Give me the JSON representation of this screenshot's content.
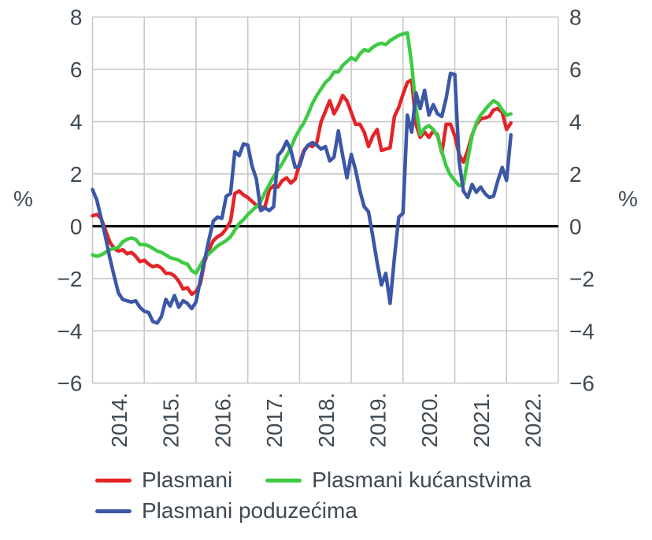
{
  "chart_data": {
    "type": "line",
    "title": "",
    "y_axis_unit": "%",
    "ylim": [
      -6,
      8
    ],
    "y_ticks": [
      8,
      6,
      4,
      2,
      0,
      -2,
      -4,
      -6
    ],
    "y_tick_labels": [
      "8",
      "6",
      "4",
      "2",
      "0",
      "−2",
      "−4",
      "−6"
    ],
    "x_tick_labels": [
      "2014.",
      "2015.",
      "2016.",
      "2017.",
      "2018.",
      "2019.",
      "2020.",
      "2021.",
      "2022."
    ],
    "x_start": "2014-01",
    "x_end": "2022-02",
    "x_total_months": 108,
    "grid": true,
    "zero_line": true,
    "legend_position": "bottom",
    "colors": {
      "grid": "#c9c9c9",
      "zero_line": "#000000",
      "text": "#3f4a54",
      "background": "#ffffff"
    },
    "series": [
      {
        "name": "Plasmani",
        "color": "#e42328",
        "values": [
          0.4,
          0.45,
          0.3,
          -0.15,
          -0.6,
          -0.85,
          -0.95,
          -0.9,
          -1.05,
          -1.0,
          -1.15,
          -1.35,
          -1.3,
          -1.45,
          -1.55,
          -1.5,
          -1.6,
          -1.8,
          -1.8,
          -1.9,
          -2.1,
          -2.4,
          -2.35,
          -2.6,
          -2.5,
          -2.2,
          -1.35,
          -0.9,
          -0.55,
          -0.4,
          -0.3,
          -0.1,
          0.2,
          1.25,
          1.35,
          1.2,
          1.1,
          0.95,
          0.8,
          0.7,
          0.75,
          1.4,
          1.55,
          1.5,
          1.75,
          1.85,
          1.65,
          1.8,
          2.4,
          2.9,
          3.1,
          3.05,
          3.2,
          4.0,
          4.4,
          4.8,
          4.3,
          4.6,
          5.0,
          4.8,
          4.35,
          3.9,
          3.9,
          3.6,
          3.05,
          3.45,
          3.7,
          2.9,
          2.95,
          3.0,
          4.2,
          4.55,
          5.05,
          5.5,
          5.6,
          3.9,
          3.4,
          3.6,
          3.4,
          3.65,
          3.5,
          2.8,
          3.9,
          3.9,
          3.45,
          2.75,
          2.45,
          2.9,
          3.5,
          3.9,
          4.1,
          4.15,
          4.2,
          4.45,
          4.5,
          4.35,
          3.7,
          3.95
        ]
      },
      {
        "name": "Plasmani kućanstvima",
        "color": "#3ecb44",
        "values": [
          -1.1,
          -1.15,
          -1.1,
          -1.0,
          -0.9,
          -0.85,
          -0.8,
          -0.6,
          -0.5,
          -0.45,
          -0.5,
          -0.7,
          -0.7,
          -0.75,
          -0.85,
          -0.95,
          -1.0,
          -1.1,
          -1.2,
          -1.25,
          -1.3,
          -1.4,
          -1.45,
          -1.7,
          -1.8,
          -1.5,
          -1.2,
          -1.05,
          -0.9,
          -0.75,
          -0.65,
          -0.55,
          -0.4,
          -0.15,
          0.1,
          0.25,
          0.45,
          0.6,
          0.75,
          0.95,
          1.3,
          1.6,
          1.9,
          2.15,
          2.4,
          2.7,
          3.0,
          3.4,
          3.7,
          3.95,
          4.3,
          4.7,
          5.0,
          5.25,
          5.5,
          5.65,
          5.9,
          5.9,
          6.15,
          6.3,
          6.45,
          6.35,
          6.6,
          6.75,
          6.7,
          6.85,
          6.95,
          7.0,
          6.95,
          7.1,
          7.2,
          7.3,
          7.35,
          7.4,
          6.2,
          4.5,
          3.5,
          3.75,
          3.85,
          3.7,
          3.45,
          2.85,
          2.3,
          1.95,
          1.75,
          1.55,
          1.6,
          2.55,
          3.45,
          3.95,
          4.25,
          4.45,
          4.65,
          4.8,
          4.7,
          4.45,
          4.25,
          4.3
        ]
      },
      {
        "name": "Plasmani poduzećima",
        "color": "#3b57a6",
        "values": [
          1.4,
          1.0,
          0.3,
          -0.4,
          -1.2,
          -1.9,
          -2.55,
          -2.8,
          -2.85,
          -2.9,
          -2.85,
          -3.1,
          -3.25,
          -3.3,
          -3.65,
          -3.7,
          -3.45,
          -2.8,
          -3.05,
          -2.65,
          -3.1,
          -2.85,
          -2.95,
          -3.15,
          -2.9,
          -2.05,
          -1.3,
          -0.5,
          0.2,
          0.35,
          0.3,
          1.15,
          1.25,
          2.85,
          2.7,
          3.15,
          3.1,
          2.3,
          1.8,
          0.6,
          0.7,
          0.6,
          0.75,
          2.7,
          2.9,
          3.25,
          2.9,
          2.25,
          2.3,
          2.85,
          3.1,
          3.2,
          3.1,
          2.95,
          3.05,
          2.5,
          2.65,
          3.65,
          2.7,
          1.85,
          2.75,
          2.15,
          1.35,
          0.75,
          0.55,
          -0.4,
          -1.4,
          -2.25,
          -1.8,
          -2.95,
          -1.2,
          0.35,
          0.5,
          4.25,
          3.6,
          5.1,
          4.5,
          5.2,
          4.25,
          4.65,
          4.3,
          4.2,
          4.9,
          5.85,
          5.8,
          2.5,
          1.35,
          1.1,
          1.6,
          1.3,
          1.5,
          1.25,
          1.1,
          1.15,
          1.75,
          2.25,
          1.75,
          3.5
        ]
      }
    ]
  }
}
